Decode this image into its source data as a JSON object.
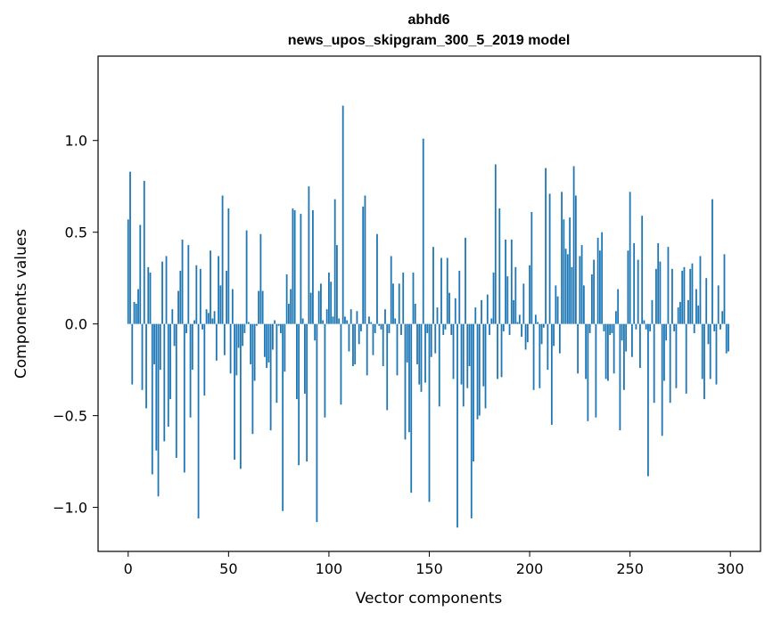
{
  "chart_data": {
    "type": "bar",
    "title": "abhd6",
    "subtitle": "news_upos_skipgram_300_5_2019 model",
    "xlabel": "Vector components",
    "ylabel": "Components values",
    "xlim": [
      -15,
      315
    ],
    "ylim": [
      -1.24,
      1.46
    ],
    "xticks": [
      0,
      50,
      100,
      150,
      200,
      250,
      300
    ],
    "xtick_labels": [
      "0",
      "50",
      "100",
      "150",
      "200",
      "250",
      "300"
    ],
    "yticks": [
      -1.0,
      -0.5,
      0.0,
      0.5,
      1.0
    ],
    "ytick_labels": [
      "−1.0",
      "−0.5",
      "0.0",
      "0.5",
      "1.0"
    ],
    "grid": false,
    "legend": "none",
    "bar_color": "#1f77b4",
    "values": [
      0.57,
      0.83,
      -0.33,
      0.12,
      0.11,
      0.19,
      0.54,
      -0.36,
      0.78,
      -0.46,
      0.31,
      0.28,
      -0.82,
      -0.22,
      -0.69,
      -0.94,
      -0.25,
      0.34,
      -0.64,
      0.37,
      -0.56,
      -0.41,
      0.08,
      -0.12,
      -0.73,
      0.18,
      0.29,
      0.46,
      -0.81,
      -0.05,
      0.43,
      -0.51,
      -0.25,
      0.02,
      0.32,
      -1.06,
      0.3,
      -0.03,
      -0.39,
      0.08,
      0.06,
      0.4,
      0.03,
      0.07,
      -0.2,
      0.37,
      0.21,
      0.7,
      -0.17,
      0.29,
      0.63,
      -0.27,
      0.19,
      -0.74,
      -0.28,
      -0.13,
      -0.79,
      -0.12,
      -0.05,
      0.51,
      0.01,
      -0.22,
      -0.6,
      -0.31,
      -0.01,
      0.18,
      0.49,
      0.18,
      -0.18,
      -0.24,
      -0.21,
      -0.58,
      -0.14,
      0.02,
      -0.43,
      -0.01,
      -0.05,
      -1.02,
      -0.26,
      0.27,
      0.11,
      0.19,
      0.63,
      0.62,
      -0.41,
      -0.77,
      0.6,
      0.03,
      -0.38,
      -0.75,
      0.75,
      0.17,
      0.62,
      -0.09,
      -1.08,
      0.18,
      0.22,
      0.02,
      -0.51,
      0.08,
      0.28,
      0.23,
      0.04,
      0.68,
      0.43,
      0.03,
      -0.44,
      1.19,
      0.04,
      0.02,
      -0.15,
      0.08,
      -0.23,
      -0.22,
      0.07,
      -0.11,
      -0.04,
      0.64,
      0.7,
      -0.28,
      0.04,
      0.01,
      -0.17,
      -0.05,
      0.49,
      -0.01,
      -0.03,
      -0.23,
      0.08,
      -0.47,
      -0.05,
      0.37,
      0.22,
      0.03,
      -0.28,
      0.22,
      -0.06,
      0.28,
      -0.63,
      -0.21,
      -0.59,
      -0.92,
      0.28,
      0.11,
      -0.22,
      -0.33,
      -0.37,
      1.01,
      -0.32,
      -0.05,
      -0.97,
      -0.18,
      0.42,
      -0.16,
      0.09,
      -0.45,
      0.36,
      -0.06,
      -0.03,
      0.36,
      0.17,
      -0.06,
      -0.3,
      0.14,
      -1.11,
      0.29,
      -0.33,
      -0.45,
      0.47,
      -0.35,
      -0.23,
      -1.06,
      -0.75,
      0.09,
      -0.52,
      -0.5,
      0.13,
      -0.34,
      -0.46,
      0.16,
      -0.06,
      0.03,
      0.28,
      0.87,
      -0.3,
      0.63,
      -0.29,
      -0.04,
      0.46,
      0.26,
      -0.06,
      0.46,
      0.13,
      0.31,
      0.01,
      0.05,
      -0.07,
      0.22,
      -0.14,
      -0.1,
      0.32,
      0.61,
      -0.36,
      0.05,
      0.01,
      -0.35,
      -0.11,
      -0.02,
      0.85,
      -0.25,
      0.71,
      -0.55,
      -0.12,
      0.21,
      0.15,
      -0.16,
      0.72,
      0.57,
      0.41,
      0.38,
      0.58,
      0.31,
      0.86,
      0.7,
      -0.27,
      0.37,
      0.43,
      0.21,
      -0.3,
      -0.53,
      -0.05,
      0.27,
      0.35,
      -0.51,
      0.47,
      0.4,
      0.5,
      -0.04,
      -0.3,
      -0.31,
      -0.06,
      -0.05,
      -0.27,
      0.07,
      0.19,
      -0.58,
      -0.09,
      -0.36,
      -0.15,
      0.4,
      0.72,
      -0.18,
      0.44,
      -0.03,
      0.35,
      -0.24,
      0.59,
      0.02,
      -0.03,
      -0.83,
      -0.04,
      0.13,
      -0.43,
      0.3,
      0.44,
      0.34,
      -0.61,
      -0.31,
      -0.09,
      0.42,
      -0.43,
      0.3,
      -0.04,
      -0.35,
      0.09,
      0.12,
      0.29,
      0.31,
      -0.38,
      0.13,
      0.3,
      0.33,
      -0.05,
      0.19,
      0.1,
      0.37,
      -0.3,
      -0.41,
      0.25,
      -0.11,
      -0.3,
      0.68,
      -0.04,
      -0.33,
      0.21,
      -0.03,
      0.07,
      0.38,
      -0.16,
      -0.15
    ]
  }
}
